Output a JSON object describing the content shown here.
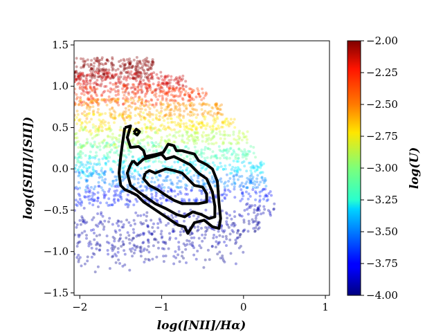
{
  "chart_data": {
    "type": "scatter",
    "title": "",
    "xlabel": "log([NII]/Hα)",
    "ylabel": "log([SIII]/[SII])",
    "colorbar_label": "log(U)",
    "xlim": [
      -2.07,
      1.05
    ],
    "ylim": [
      -1.53,
      1.55
    ],
    "xticks": [
      -2,
      -1,
      0,
      1
    ],
    "xtick_labels": [
      "−2",
      "−1",
      "0",
      "1"
    ],
    "yticks": [
      -1.5,
      -1.0,
      -0.5,
      0.0,
      0.5,
      1.0,
      1.5
    ],
    "ytick_labels": [
      "−1.5",
      "−1.0",
      "−0.5",
      "0.0",
      "0.5",
      "1.0",
      "1.5"
    ],
    "colorbar": {
      "colormap": "jet",
      "range": [
        -4.0,
        -2.0
      ],
      "ticks": [
        -4.0,
        -3.75,
        -3.5,
        -3.25,
        -3.0,
        -2.75,
        -2.5,
        -2.25,
        -2.0
      ],
      "tick_labels": [
        "−4.00",
        "−3.75",
        "−3.50",
        "−3.25",
        "−3.00",
        "−2.75",
        "−2.50",
        "−2.25",
        "−2.00"
      ]
    },
    "grid": false,
    "scatter_bands": [
      {
        "logU": -2.0,
        "y_center": 1.22,
        "x_max": -1.1
      },
      {
        "logU": -2.15,
        "y_center": 1.05,
        "x_max": -0.7
      },
      {
        "logU": -2.35,
        "y_center": 0.9,
        "x_max": -0.45
      },
      {
        "logU": -2.55,
        "y_center": 0.72,
        "x_max": -0.25
      },
      {
        "logU": -2.7,
        "y_center": 0.55,
        "x_max": -0.1
      },
      {
        "logU": -2.9,
        "y_center": 0.38,
        "x_max": 0.05
      },
      {
        "logU": -3.1,
        "y_center": 0.2,
        "x_max": 0.15
      },
      {
        "logU": -3.3,
        "y_center": 0.02,
        "x_max": 0.25
      },
      {
        "logU": -3.5,
        "y_center": -0.15,
        "x_max": 0.3
      },
      {
        "logU": -3.7,
        "y_center": -0.32,
        "x_max": 0.35
      },
      {
        "logU": -3.9,
        "y_center": -0.5,
        "x_max": 0.38
      },
      {
        "logU": -3.95,
        "y_center": -0.68,
        "x_max": 0.2
      }
    ],
    "contours": [
      {
        "level": "outer",
        "points": [
          [
            -1.45,
            0.5
          ],
          [
            -1.38,
            0.52
          ],
          [
            -1.42,
            0.38
          ],
          [
            -1.38,
            0.26
          ],
          [
            -1.28,
            0.27
          ],
          [
            -1.22,
            0.22
          ],
          [
            -1.2,
            0.15
          ],
          [
            -1.05,
            0.18
          ],
          [
            -0.98,
            0.2
          ],
          [
            -0.92,
            0.3
          ],
          [
            -0.85,
            0.28
          ],
          [
            -0.82,
            0.22
          ],
          [
            -0.75,
            0.22
          ],
          [
            -0.68,
            0.2
          ],
          [
            -0.6,
            0.18
          ],
          [
            -0.55,
            0.1
          ],
          [
            -0.45,
            0.05
          ],
          [
            -0.38,
            0.0
          ],
          [
            -0.32,
            -0.15
          ],
          [
            -0.3,
            -0.4
          ],
          [
            -0.28,
            -0.6
          ],
          [
            -0.3,
            -0.72
          ],
          [
            -0.38,
            -0.7
          ],
          [
            -0.48,
            -0.62
          ],
          [
            -0.6,
            -0.65
          ],
          [
            -0.68,
            -0.78
          ],
          [
            -0.72,
            -0.7
          ],
          [
            -0.8,
            -0.68
          ],
          [
            -0.92,
            -0.6
          ],
          [
            -1.1,
            -0.48
          ],
          [
            -1.22,
            -0.4
          ],
          [
            -1.3,
            -0.32
          ],
          [
            -1.38,
            -0.28
          ],
          [
            -1.45,
            -0.25
          ],
          [
            -1.5,
            -0.2
          ],
          [
            -1.52,
            -0.05
          ],
          [
            -1.5,
            0.15
          ],
          [
            -1.48,
            0.3
          ],
          [
            -1.45,
            0.5
          ]
        ]
      },
      {
        "level": "middle",
        "points": [
          [
            -1.35,
            0.1
          ],
          [
            -1.3,
            0.05
          ],
          [
            -1.22,
            0.12
          ],
          [
            -1.1,
            0.15
          ],
          [
            -1.0,
            0.18
          ],
          [
            -0.95,
            0.12
          ],
          [
            -0.85,
            0.15
          ],
          [
            -0.75,
            0.1
          ],
          [
            -0.65,
            0.05
          ],
          [
            -0.55,
            -0.05
          ],
          [
            -0.45,
            -0.12
          ],
          [
            -0.38,
            -0.28
          ],
          [
            -0.35,
            -0.45
          ],
          [
            -0.35,
            -0.58
          ],
          [
            -0.42,
            -0.6
          ],
          [
            -0.52,
            -0.55
          ],
          [
            -0.62,
            -0.52
          ],
          [
            -0.72,
            -0.58
          ],
          [
            -0.82,
            -0.55
          ],
          [
            -0.95,
            -0.48
          ],
          [
            -1.08,
            -0.42
          ],
          [
            -1.18,
            -0.35
          ],
          [
            -1.28,
            -0.28
          ],
          [
            -1.38,
            -0.2
          ],
          [
            -1.42,
            -0.05
          ],
          [
            -1.38,
            0.05
          ],
          [
            -1.35,
            0.1
          ]
        ]
      },
      {
        "level": "inner",
        "points": [
          [
            -1.2,
            -0.05
          ],
          [
            -1.15,
            -0.02
          ],
          [
            -1.08,
            -0.05
          ],
          [
            -0.95,
            0.0
          ],
          [
            -0.85,
            -0.02
          ],
          [
            -0.75,
            -0.05
          ],
          [
            -0.68,
            -0.12
          ],
          [
            -0.6,
            -0.2
          ],
          [
            -0.5,
            -0.22
          ],
          [
            -0.45,
            -0.3
          ],
          [
            -0.45,
            -0.4
          ],
          [
            -0.55,
            -0.42
          ],
          [
            -0.65,
            -0.42
          ],
          [
            -0.75,
            -0.42
          ],
          [
            -0.85,
            -0.38
          ],
          [
            -0.95,
            -0.32
          ],
          [
            -1.05,
            -0.25
          ],
          [
            -1.15,
            -0.2
          ],
          [
            -1.22,
            -0.12
          ],
          [
            -1.2,
            -0.05
          ]
        ]
      },
      {
        "level": "peak",
        "points": [
          [
            -1.34,
            0.44
          ],
          [
            -1.31,
            0.48
          ],
          [
            -1.27,
            0.45
          ],
          [
            -1.3,
            0.41
          ],
          [
            -1.34,
            0.44
          ]
        ]
      }
    ]
  }
}
